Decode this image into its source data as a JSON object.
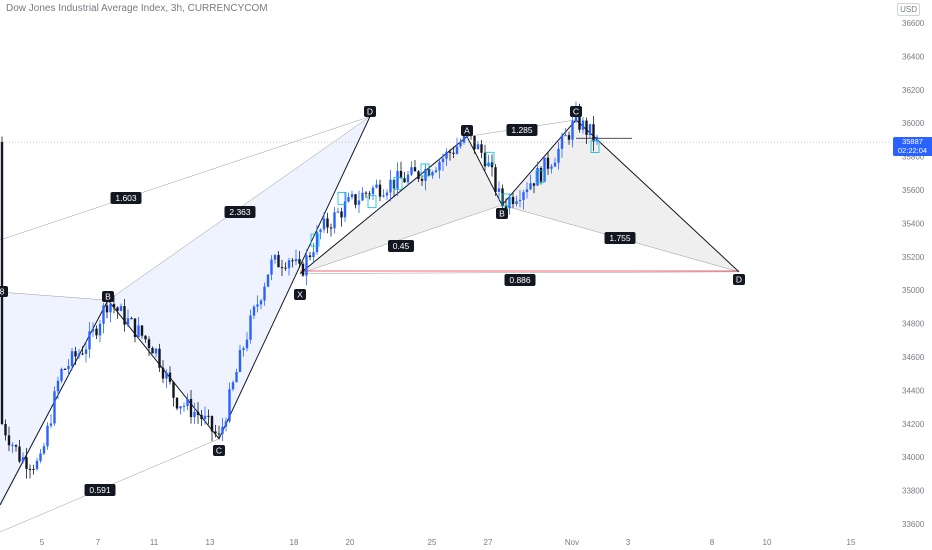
{
  "header": {
    "title": "Dow Jones Industrial Average Index, 3h, CURRENCYCOM",
    "currency": "USD"
  },
  "price_tag": {
    "price": "35887",
    "countdown": "02:22:04"
  },
  "chart_data": {
    "type": "candlestick",
    "title": "Dow Jones Industrial Average Index, 3h, CURRENCYCOM",
    "ylim": [
      33520,
      36720
    ],
    "y_ticks": [
      36600,
      36400,
      36200,
      36000,
      35800,
      35600,
      35400,
      35200,
      35000,
      34800,
      34600,
      34400,
      34200,
      34000,
      33800,
      33600
    ],
    "x_ticks": [
      "5",
      "7",
      "11",
      "13",
      "18",
      "20",
      "25",
      "27",
      "Nov",
      "3",
      "8",
      "10",
      "15"
    ],
    "last_price": 35887,
    "patterns": [
      {
        "name": "first",
        "points": [
          {
            "label": "B",
            "price": 34940
          },
          {
            "label": "C",
            "price": 34110
          },
          {
            "label": "D",
            "price": 36040
          }
        ],
        "ratios": [
          "1.603",
          "2.363",
          "0.591"
        ]
      },
      {
        "name": "second",
        "points": [
          {
            "label": "X",
            "price": 35100
          },
          {
            "label": "A",
            "price": 35920
          },
          {
            "label": "B",
            "price": 35510
          },
          {
            "label": "C",
            "price": 36020
          },
          {
            "label": "D",
            "price": 35110
          }
        ],
        "ratios": [
          "0.45",
          "1.285",
          "1.755",
          "0.886"
        ]
      }
    ],
    "partial_label": "8"
  }
}
